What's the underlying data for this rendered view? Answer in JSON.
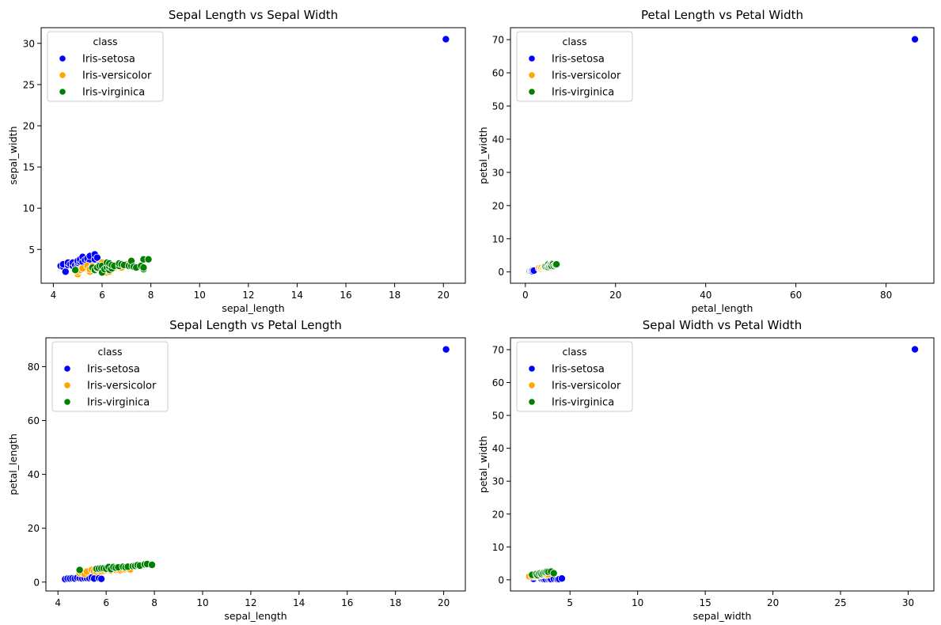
{
  "chart_data": [
    {
      "type": "scatter",
      "title": "Sepal Length vs Sepal Width",
      "xlabel": "sepal_length",
      "ylabel": "sepal_width",
      "xlim": [
        3.5,
        20.9
      ],
      "ylim": [
        0.9,
        31.9
      ],
      "xticks": [
        4,
        6,
        8,
        10,
        12,
        14,
        16,
        18,
        20
      ],
      "yticks": [
        5,
        10,
        15,
        20,
        25,
        30
      ],
      "legend": {
        "title": "class",
        "position": "top-left"
      },
      "series": [
        {
          "name": "Iris-setosa",
          "color": "#0000ff",
          "points": [
            [
              4.3,
              3.0
            ],
            [
              4.4,
              2.9
            ],
            [
              4.4,
              3.2
            ],
            [
              4.5,
              2.3
            ],
            [
              4.6,
              3.1
            ],
            [
              4.6,
              3.4
            ],
            [
              4.7,
              3.2
            ],
            [
              4.8,
              3.0
            ],
            [
              4.8,
              3.4
            ],
            [
              4.9,
              3.1
            ],
            [
              5.0,
              3.0
            ],
            [
              5.0,
              3.4
            ],
            [
              5.0,
              3.6
            ],
            [
              5.1,
              3.5
            ],
            [
              5.1,
              3.8
            ],
            [
              5.2,
              3.5
            ],
            [
              5.2,
              4.1
            ],
            [
              5.3,
              3.7
            ],
            [
              5.4,
              3.4
            ],
            [
              5.4,
              3.9
            ],
            [
              5.5,
              3.5
            ],
            [
              5.5,
              4.2
            ],
            [
              5.7,
              3.8
            ],
            [
              5.7,
              4.4
            ],
            [
              5.8,
              4.0
            ],
            [
              20.1,
              30.5
            ]
          ]
        },
        {
          "name": "Iris-versicolor",
          "color": "#ffa500",
          "points": [
            [
              4.9,
              2.4
            ],
            [
              5.0,
              2.0
            ],
            [
              5.0,
              2.3
            ],
            [
              5.1,
              2.5
            ],
            [
              5.2,
              2.7
            ],
            [
              5.4,
              3.0
            ],
            [
              5.5,
              2.3
            ],
            [
              5.5,
              2.6
            ],
            [
              5.6,
              2.9
            ],
            [
              5.6,
              3.0
            ],
            [
              5.7,
              2.6
            ],
            [
              5.7,
              2.8
            ],
            [
              5.8,
              2.7
            ],
            [
              5.9,
              3.0
            ],
            [
              5.9,
              3.2
            ],
            [
              6.0,
              2.2
            ],
            [
              6.0,
              2.9
            ],
            [
              6.0,
              3.4
            ],
            [
              6.1,
              2.8
            ],
            [
              6.2,
              2.2
            ],
            [
              6.3,
              2.3
            ],
            [
              6.4,
              2.9
            ],
            [
              6.4,
              3.2
            ],
            [
              6.5,
              2.8
            ],
            [
              6.6,
              3.0
            ],
            [
              6.7,
              3.1
            ],
            [
              6.8,
              2.8
            ],
            [
              6.9,
              3.1
            ],
            [
              7.0,
              3.2
            ]
          ]
        },
        {
          "name": "Iris-virginica",
          "color": "#008000",
          "points": [
            [
              4.9,
              2.5
            ],
            [
              5.6,
              2.8
            ],
            [
              5.7,
              2.5
            ],
            [
              5.8,
              2.7
            ],
            [
              5.8,
              2.8
            ],
            [
              5.9,
              3.0
            ],
            [
              6.0,
              2.2
            ],
            [
              6.0,
              3.0
            ],
            [
              6.1,
              2.6
            ],
            [
              6.2,
              2.8
            ],
            [
              6.2,
              3.4
            ],
            [
              6.3,
              2.5
            ],
            [
              6.3,
              2.9
            ],
            [
              6.3,
              3.3
            ],
            [
              6.4,
              2.7
            ],
            [
              6.4,
              3.1
            ],
            [
              6.5,
              3.0
            ],
            [
              6.7,
              3.0
            ],
            [
              6.7,
              3.3
            ],
            [
              6.8,
              3.2
            ],
            [
              6.9,
              3.1
            ],
            [
              7.1,
              3.0
            ],
            [
              7.2,
              3.0
            ],
            [
              7.2,
              3.6
            ],
            [
              7.3,
              2.9
            ],
            [
              7.4,
              2.8
            ],
            [
              7.6,
              3.0
            ],
            [
              7.7,
              2.6
            ],
            [
              7.7,
              2.8
            ],
            [
              7.7,
              3.8
            ],
            [
              7.9,
              3.8
            ]
          ]
        }
      ]
    },
    {
      "type": "scatter",
      "title": "Petal Length vs Petal Width",
      "xlabel": "petal_length",
      "ylabel": "petal_width",
      "xlim": [
        -3.3,
        90.6
      ],
      "ylim": [
        -3.4,
        73.6
      ],
      "xticks": [
        0,
        20,
        40,
        60,
        80
      ],
      "yticks": [
        0,
        10,
        20,
        30,
        40,
        50,
        60,
        70
      ],
      "legend": {
        "title": "class",
        "position": "top-left"
      },
      "series": [
        {
          "name": "Iris-setosa",
          "color": "#0000ff",
          "points": [
            [
              1.0,
              0.2
            ],
            [
              1.2,
              0.2
            ],
            [
              1.3,
              0.3
            ],
            [
              1.4,
              0.2
            ],
            [
              1.5,
              0.4
            ],
            [
              1.6,
              0.2
            ],
            [
              1.7,
              0.5
            ],
            [
              1.9,
              0.4
            ],
            [
              86.4,
              70.1
            ]
          ]
        },
        {
          "name": "Iris-versicolor",
          "color": "#ffa500",
          "points": [
            [
              3.0,
              1.1
            ],
            [
              3.3,
              1.0
            ],
            [
              3.5,
              1.0
            ],
            [
              3.6,
              1.3
            ],
            [
              3.9,
              1.1
            ],
            [
              4.0,
              1.3
            ],
            [
              4.2,
              1.3
            ],
            [
              4.4,
              1.4
            ],
            [
              4.5,
              1.5
            ],
            [
              4.7,
              1.4
            ],
            [
              4.8,
              1.8
            ],
            [
              5.0,
              1.7
            ],
            [
              5.1,
              1.6
            ]
          ]
        },
        {
          "name": "Iris-virginica",
          "color": "#008000",
          "points": [
            [
              4.5,
              1.7
            ],
            [
              4.8,
              1.8
            ],
            [
              5.0,
              1.5
            ],
            [
              5.1,
              1.9
            ],
            [
              5.1,
              2.3
            ],
            [
              5.3,
              1.9
            ],
            [
              5.5,
              2.1
            ],
            [
              5.6,
              2.4
            ],
            [
              5.7,
              2.3
            ],
            [
              5.8,
              1.8
            ],
            [
              6.0,
              2.5
            ],
            [
              6.1,
              2.3
            ],
            [
              6.3,
              1.8
            ],
            [
              6.6,
              2.1
            ],
            [
              6.7,
              2.2
            ],
            [
              6.9,
              2.3
            ]
          ]
        }
      ]
    },
    {
      "type": "scatter",
      "title": "Sepal Length vs Petal Length",
      "xlabel": "sepal_length",
      "ylabel": "petal_length",
      "xlim": [
        3.5,
        20.9
      ],
      "ylim": [
        -3.3,
        90.7
      ],
      "xticks": [
        4,
        6,
        8,
        10,
        12,
        14,
        16,
        18,
        20
      ],
      "yticks": [
        0,
        20,
        40,
        60,
        80
      ],
      "legend": {
        "title": "class",
        "position": "top-left"
      },
      "series": [
        {
          "name": "Iris-setosa",
          "color": "#0000ff",
          "points": [
            [
              4.3,
              1.1
            ],
            [
              4.4,
              1.3
            ],
            [
              4.5,
              1.3
            ],
            [
              4.6,
              1.4
            ],
            [
              4.7,
              1.3
            ],
            [
              4.8,
              1.6
            ],
            [
              4.9,
              1.5
            ],
            [
              5.0,
              1.4
            ],
            [
              5.1,
              1.5
            ],
            [
              5.2,
              1.5
            ],
            [
              5.3,
              1.5
            ],
            [
              5.4,
              1.7
            ],
            [
              5.5,
              1.3
            ],
            [
              5.7,
              1.5
            ],
            [
              5.8,
              1.2
            ],
            [
              20.1,
              86.4
            ]
          ]
        },
        {
          "name": "Iris-versicolor",
          "color": "#ffa500",
          "points": [
            [
              4.9,
              3.3
            ],
            [
              5.0,
              3.5
            ],
            [
              5.1,
              3.0
            ],
            [
              5.2,
              3.9
            ],
            [
              5.4,
              4.5
            ],
            [
              5.5,
              4.0
            ],
            [
              5.6,
              3.9
            ],
            [
              5.7,
              4.2
            ],
            [
              5.8,
              4.0
            ],
            [
              5.9,
              4.2
            ],
            [
              6.0,
              4.5
            ],
            [
              6.1,
              4.7
            ],
            [
              6.2,
              4.3
            ],
            [
              6.3,
              4.7
            ],
            [
              6.4,
              4.5
            ],
            [
              6.5,
              4.6
            ],
            [
              6.6,
              4.4
            ],
            [
              6.7,
              4.7
            ],
            [
              6.8,
              4.8
            ],
            [
              6.9,
              4.9
            ],
            [
              7.0,
              4.7
            ]
          ]
        },
        {
          "name": "Iris-virginica",
          "color": "#008000",
          "points": [
            [
              4.9,
              4.5
            ],
            [
              5.6,
              4.9
            ],
            [
              5.7,
              5.0
            ],
            [
              5.8,
              5.1
            ],
            [
              5.9,
              5.1
            ],
            [
              6.0,
              5.0
            ],
            [
              6.1,
              5.6
            ],
            [
              6.2,
              4.8
            ],
            [
              6.3,
              5.6
            ],
            [
              6.4,
              5.3
            ],
            [
              6.5,
              5.5
            ],
            [
              6.7,
              5.7
            ],
            [
              6.8,
              5.5
            ],
            [
              6.9,
              5.7
            ],
            [
              7.1,
              5.9
            ],
            [
              7.2,
              6.0
            ],
            [
              7.3,
              6.3
            ],
            [
              7.4,
              6.1
            ],
            [
              7.6,
              6.6
            ],
            [
              7.7,
              6.7
            ],
            [
              7.9,
              6.4
            ]
          ]
        }
      ]
    },
    {
      "type": "scatter",
      "title": "Sepal Width vs Petal Width",
      "xlabel": "sepal_width",
      "ylabel": "petal_width",
      "xlim": [
        0.6,
        31.9
      ],
      "ylim": [
        -3.4,
        73.6
      ],
      "xticks": [
        5,
        10,
        15,
        20,
        25,
        30
      ],
      "yticks": [
        0,
        10,
        20,
        30,
        40,
        50,
        60,
        70
      ],
      "legend": {
        "title": "class",
        "position": "top-left"
      },
      "series": [
        {
          "name": "Iris-setosa",
          "color": "#0000ff",
          "points": [
            [
              2.3,
              0.3
            ],
            [
              2.9,
              0.2
            ],
            [
              3.0,
              0.2
            ],
            [
              3.1,
              0.1
            ],
            [
              3.2,
              0.2
            ],
            [
              3.4,
              0.2
            ],
            [
              3.5,
              0.3
            ],
            [
              3.6,
              0.2
            ],
            [
              3.8,
              0.3
            ],
            [
              4.0,
              0.2
            ],
            [
              4.1,
              0.1
            ],
            [
              4.2,
              0.2
            ],
            [
              4.4,
              0.4
            ],
            [
              30.5,
              70.1
            ]
          ]
        },
        {
          "name": "Iris-versicolor",
          "color": "#ffa500",
          "points": [
            [
              2.0,
              1.0
            ],
            [
              2.2,
              1.0
            ],
            [
              2.3,
              1.3
            ],
            [
              2.4,
              1.0
            ],
            [
              2.5,
              1.1
            ],
            [
              2.6,
              1.2
            ],
            [
              2.7,
              1.4
            ],
            [
              2.8,
              1.3
            ],
            [
              2.9,
              1.4
            ],
            [
              3.0,
              1.5
            ],
            [
              3.1,
              1.5
            ],
            [
              3.2,
              1.5
            ],
            [
              3.3,
              1.6
            ],
            [
              3.4,
              1.6
            ]
          ]
        },
        {
          "name": "Iris-virginica",
          "color": "#008000",
          "points": [
            [
              2.2,
              1.5
            ],
            [
              2.5,
              1.7
            ],
            [
              2.6,
              1.4
            ],
            [
              2.7,
              1.9
            ],
            [
              2.8,
              2.0
            ],
            [
              2.9,
              1.8
            ],
            [
              3.0,
              2.1
            ],
            [
              3.1,
              2.3
            ],
            [
              3.2,
              2.3
            ],
            [
              3.3,
              2.5
            ],
            [
              3.4,
              2.4
            ],
            [
              3.6,
              2.5
            ],
            [
              3.8,
              2.0
            ]
          ]
        }
      ]
    }
  ]
}
